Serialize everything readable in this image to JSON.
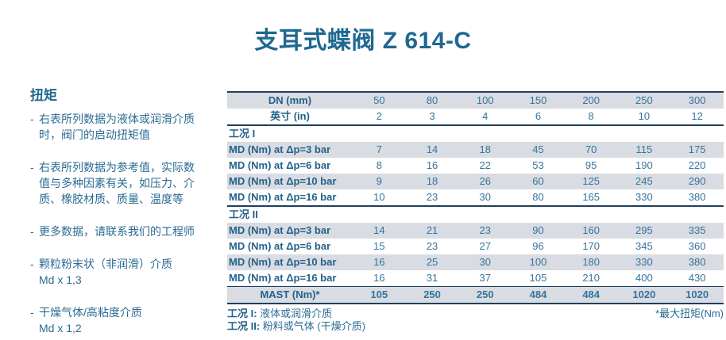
{
  "title": "支耳式蝶阀 Z 614-C",
  "colors": {
    "accent_blue": "#2b6b93",
    "heading_blue": "#1f6890",
    "dark_rule": "#1e3f5c",
    "row_stripe": "#d9dce2",
    "background": "#ffffff"
  },
  "sidebar": {
    "heading": "扭矩",
    "bullets": [
      {
        "lines": [
          "右表所列数据为液体或润滑介质",
          "时，阀门的启动扭矩值"
        ]
      },
      {
        "lines": [
          "右表所列数据为参考值，实际数",
          "值与多种因素有关，如压力、介",
          "质、橡胶材质、质量、温度等"
        ]
      },
      {
        "lines": [
          "更多数据，请联系我们的工程师"
        ]
      },
      {
        "lines": [
          "颗粒粉末状（非润滑）介质",
          "Md x 1,3"
        ]
      },
      {
        "lines": [
          "干燥气体/高粘度介质",
          "Md x 1,2"
        ]
      }
    ]
  },
  "chart_data": {
    "type": "table",
    "title": "支耳式蝶阀 Z 614-C 扭矩表",
    "header_rows": [
      {
        "label": "DN (mm)",
        "values": [
          "50",
          "80",
          "100",
          "150",
          "200",
          "250",
          "300"
        ]
      },
      {
        "label": "英寸 (in)",
        "values": [
          "2",
          "3",
          "4",
          "6",
          "8",
          "10",
          "12"
        ]
      }
    ],
    "sections": [
      {
        "title": "工况 I",
        "rows": [
          {
            "label": "MD (Nm) at Δp=3 bar",
            "values": [
              "7",
              "14",
              "18",
              "45",
              "70",
              "115",
              "175"
            ]
          },
          {
            "label": "MD (Nm) at Δp=6 bar",
            "values": [
              "8",
              "16",
              "22",
              "53",
              "95",
              "190",
              "220"
            ]
          },
          {
            "label": "MD (Nm) at Δp=10 bar",
            "values": [
              "9",
              "18",
              "26",
              "60",
              "125",
              "245",
              "290"
            ]
          },
          {
            "label": "MD (Nm) at Δp=16 bar",
            "values": [
              "10",
              "23",
              "30",
              "80",
              "165",
              "330",
              "380"
            ]
          }
        ]
      },
      {
        "title": "工况 II",
        "rows": [
          {
            "label": "MD (Nm) at Δp=3 bar",
            "values": [
              "14",
              "21",
              "23",
              "90",
              "160",
              "295",
              "335"
            ]
          },
          {
            "label": "MD (Nm) at Δp=6 bar",
            "values": [
              "15",
              "23",
              "27",
              "96",
              "170",
              "345",
              "360"
            ]
          },
          {
            "label": "MD (Nm) at Δp=10 bar",
            "values": [
              "16",
              "25",
              "30",
              "100",
              "180",
              "330",
              "380"
            ]
          },
          {
            "label": "MD (Nm) at Δp=16 bar",
            "values": [
              "16",
              "31",
              "37",
              "105",
              "210",
              "400",
              "430"
            ]
          }
        ]
      }
    ],
    "summary_row": {
      "label": "MAST (Nm)*",
      "values": [
        "105",
        "250",
        "250",
        "484",
        "484",
        "1020",
        "1020"
      ]
    },
    "notes": [
      {
        "bold": "工况 I:",
        "text": "液体或润滑介质"
      },
      {
        "bold": "工况 II:",
        "text": "粉料或气体 (干燥介质)"
      }
    ],
    "right_note": "*最大扭矩(Nm)"
  }
}
